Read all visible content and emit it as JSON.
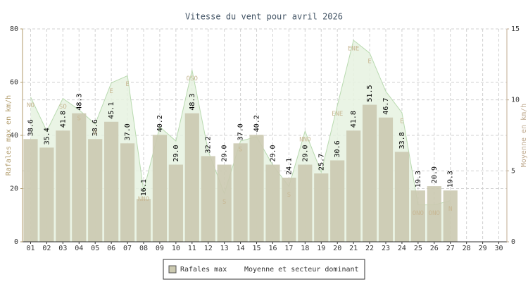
{
  "chart_data": {
    "type": "bar",
    "title": "Vitesse du vent pour avril 2026",
    "ylabel": "Rafales max en km/h",
    "y2label": "Moyenne en km/h",
    "categories": [
      "01",
      "02",
      "03",
      "04",
      "05",
      "06",
      "07",
      "08",
      "09",
      "10",
      "11",
      "12",
      "13",
      "14",
      "15",
      "16",
      "17",
      "18",
      "19",
      "20",
      "21",
      "22",
      "23",
      "24",
      "25",
      "26",
      "27",
      "28",
      "29",
      "30"
    ],
    "series": [
      {
        "name": "Rafales max",
        "color": "#cbc9b0",
        "values": [
          38.6,
          35.4,
          41.8,
          48.3,
          38.6,
          45.1,
          37.0,
          16.1,
          40.2,
          29.0,
          48.3,
          32.2,
          29.0,
          37.0,
          40.2,
          29.0,
          24.1,
          29.0,
          25.7,
          30.6,
          41.8,
          51.5,
          46.7,
          33.8,
          19.3,
          20.9,
          19.3,
          null,
          null,
          null
        ],
        "value_labels": [
          "38.6",
          "35.4",
          "41.8",
          "48.3",
          "38.6",
          "45.1",
          "37.0",
          "16.1",
          "40.2",
          "29.0",
          "48.3",
          "32.2",
          "29.0",
          "37.0",
          "40.2",
          "29.0",
          "24.1",
          "29.0",
          "25.7",
          "30.6",
          "41.8",
          "51.5",
          "46.7",
          "33.8",
          "19.3",
          "20.9",
          "19.3",
          null,
          null,
          null
        ]
      },
      {
        "name": "Moyenne et secteur dominant",
        "type": "area",
        "axis": "y2",
        "color": "#b9dab0",
        "values": [
          10.2,
          7.8,
          10.1,
          9.3,
          8.3,
          11.2,
          11.7,
          3.6,
          8.1,
          7.1,
          12.1,
          6.4,
          3.4,
          7.1,
          7.4,
          5.4,
          3.9,
          7.8,
          4.9,
          9.6,
          14.2,
          13.3,
          10.6,
          9.1,
          2.6,
          2.6,
          2.9,
          null,
          null,
          null
        ],
        "directions": [
          "NO",
          null,
          "SO",
          "S",
          "O",
          "E",
          "E",
          "NNO",
          null,
          null,
          "OSO",
          null,
          "S",
          "S",
          null,
          null,
          "S",
          "NNO",
          null,
          "ENE",
          "ENE",
          "E",
          null,
          "E",
          "ONO",
          "ONO",
          "N",
          null,
          null,
          null
        ]
      }
    ],
    "ylim": [
      0,
      80
    ],
    "yticks": [
      0,
      20,
      40,
      60,
      80
    ],
    "y2lim": [
      0,
      15
    ],
    "y2ticks": [
      0,
      5,
      10,
      15
    ],
    "grid": true
  }
}
